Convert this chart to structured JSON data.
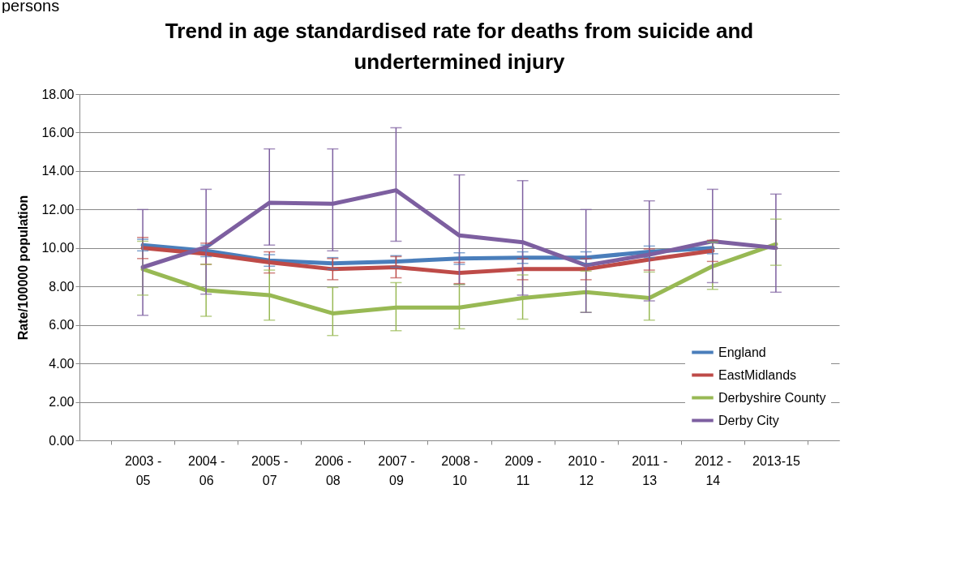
{
  "chart_data": {
    "type": "line",
    "title": "Trend in age standardised  rate for deaths from suicide and\nundertermined  injury",
    "ylabel": "Rate/100000 population",
    "annotations": [
      "persons"
    ],
    "categories": [
      "2003 - 05",
      "2004 - 06",
      "2005 - 07",
      "2006 - 08",
      "2007 - 09",
      "2008 - 10",
      "2009 - 11",
      "2010 - 12",
      "2011 - 13",
      "2012 - 14",
      "2013-15"
    ],
    "series": [
      {
        "name": "England",
        "color": "#4a7ebb",
        "values": [
          10.15,
          9.85,
          9.35,
          9.2,
          9.3,
          9.45,
          9.5,
          9.5,
          9.8,
          10.0,
          null
        ],
        "errors": [
          0.3,
          0.3,
          0.3,
          0.3,
          0.3,
          0.3,
          0.3,
          0.3,
          0.3,
          0.3,
          null
        ]
      },
      {
        "name": "EastMidlands",
        "color": "#be4b48",
        "values": [
          10.0,
          9.7,
          9.25,
          8.9,
          9.0,
          8.7,
          8.9,
          8.9,
          9.4,
          9.85,
          null
        ],
        "errors": [
          0.55,
          0.55,
          0.55,
          0.55,
          0.55,
          0.55,
          0.55,
          0.55,
          0.55,
          0.55,
          null
        ]
      },
      {
        "name": "Derbyshire County",
        "color": "#98b954",
        "values": [
          8.9,
          7.8,
          7.55,
          6.6,
          6.9,
          6.9,
          7.4,
          7.7,
          7.4,
          9.05,
          10.2
        ],
        "errors": [
          [
            7.55,
            10.35
          ],
          [
            6.45,
            9.15
          ],
          [
            6.25,
            8.85
          ],
          [
            5.45,
            7.95
          ],
          [
            5.7,
            8.2
          ],
          [
            5.8,
            8.1
          ],
          [
            6.3,
            8.6
          ],
          [
            6.65,
            8.8
          ],
          [
            6.25,
            8.75
          ],
          [
            7.85,
            10.3
          ],
          [
            9.1,
            11.5
          ]
        ]
      },
      {
        "name": "Derby City",
        "color": "#7d5fa0",
        "values": [
          9.0,
          10.05,
          12.35,
          12.3,
          13.0,
          10.65,
          10.3,
          9.1,
          9.65,
          10.35,
          10.0
        ],
        "errors": [
          [
            6.5,
            12.0
          ],
          [
            7.6,
            13.05
          ],
          [
            10.15,
            15.15
          ],
          [
            9.85,
            15.15
          ],
          [
            10.35,
            16.25
          ],
          [
            8.1,
            13.8
          ],
          [
            7.55,
            13.5
          ],
          [
            6.65,
            12.0
          ],
          [
            7.25,
            12.45
          ],
          [
            8.2,
            13.05
          ],
          [
            7.7,
            12.8
          ]
        ]
      }
    ],
    "ylim": [
      0,
      18
    ],
    "yticks": [
      {
        "value": 0,
        "label": "0.00"
      },
      {
        "value": 2,
        "label": "2.00"
      },
      {
        "value": 4,
        "label": "4.00"
      },
      {
        "value": 6,
        "label": "6.00"
      },
      {
        "value": 8,
        "label": "8.00"
      },
      {
        "value": 10,
        "label": "10.00"
      },
      {
        "value": 12,
        "label": "12.00"
      },
      {
        "value": 14,
        "label": "14.00"
      },
      {
        "value": 16,
        "label": "16.00"
      },
      {
        "value": 18,
        "label": "18.00"
      }
    ],
    "grid": "y",
    "legend": "bottom right",
    "marker": "none",
    "line_style": "solid"
  }
}
